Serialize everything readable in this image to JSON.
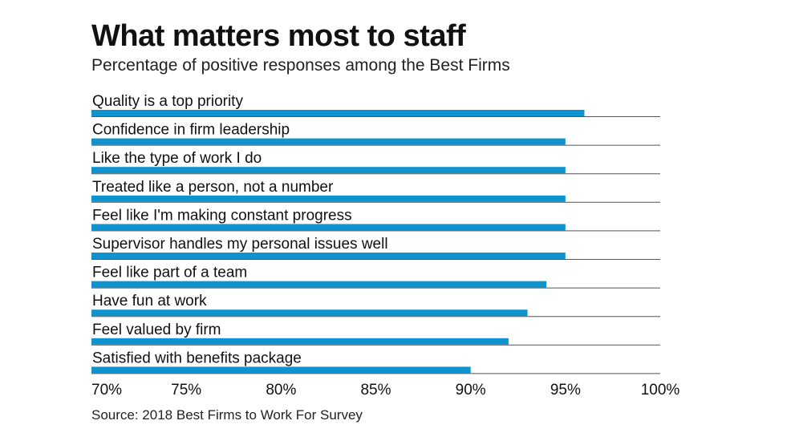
{
  "chart_data": {
    "type": "bar",
    "orientation": "horizontal",
    "title": "What matters most to staff",
    "subtitle": "Percentage of positive responses among the Best Firms",
    "source": "Source: 2018 Best Firms to Work For Survey",
    "categories": [
      "Quality is a top priority",
      "Confidence in firm leadership",
      "Like the type of work I do",
      "Treated like a person, not a number",
      "Feel like I'm making constant progress",
      "Supervisor handles my personal issues well",
      "Feel like part of a team",
      "Have fun at work",
      "Feel valued by firm",
      "Satisfied with benefits package"
    ],
    "values": [
      96,
      95,
      95,
      95,
      95,
      95,
      94,
      93,
      92,
      90
    ],
    "xlim": [
      70,
      100
    ],
    "xticks": [
      70,
      75,
      80,
      85,
      90,
      95,
      100
    ],
    "tick_labels": [
      "70%",
      "75%",
      "80%",
      "85%",
      "90%",
      "95%",
      "100%"
    ],
    "xlabel": "",
    "ylabel": "",
    "bar_color": "#0e93cf",
    "grid": false
  }
}
